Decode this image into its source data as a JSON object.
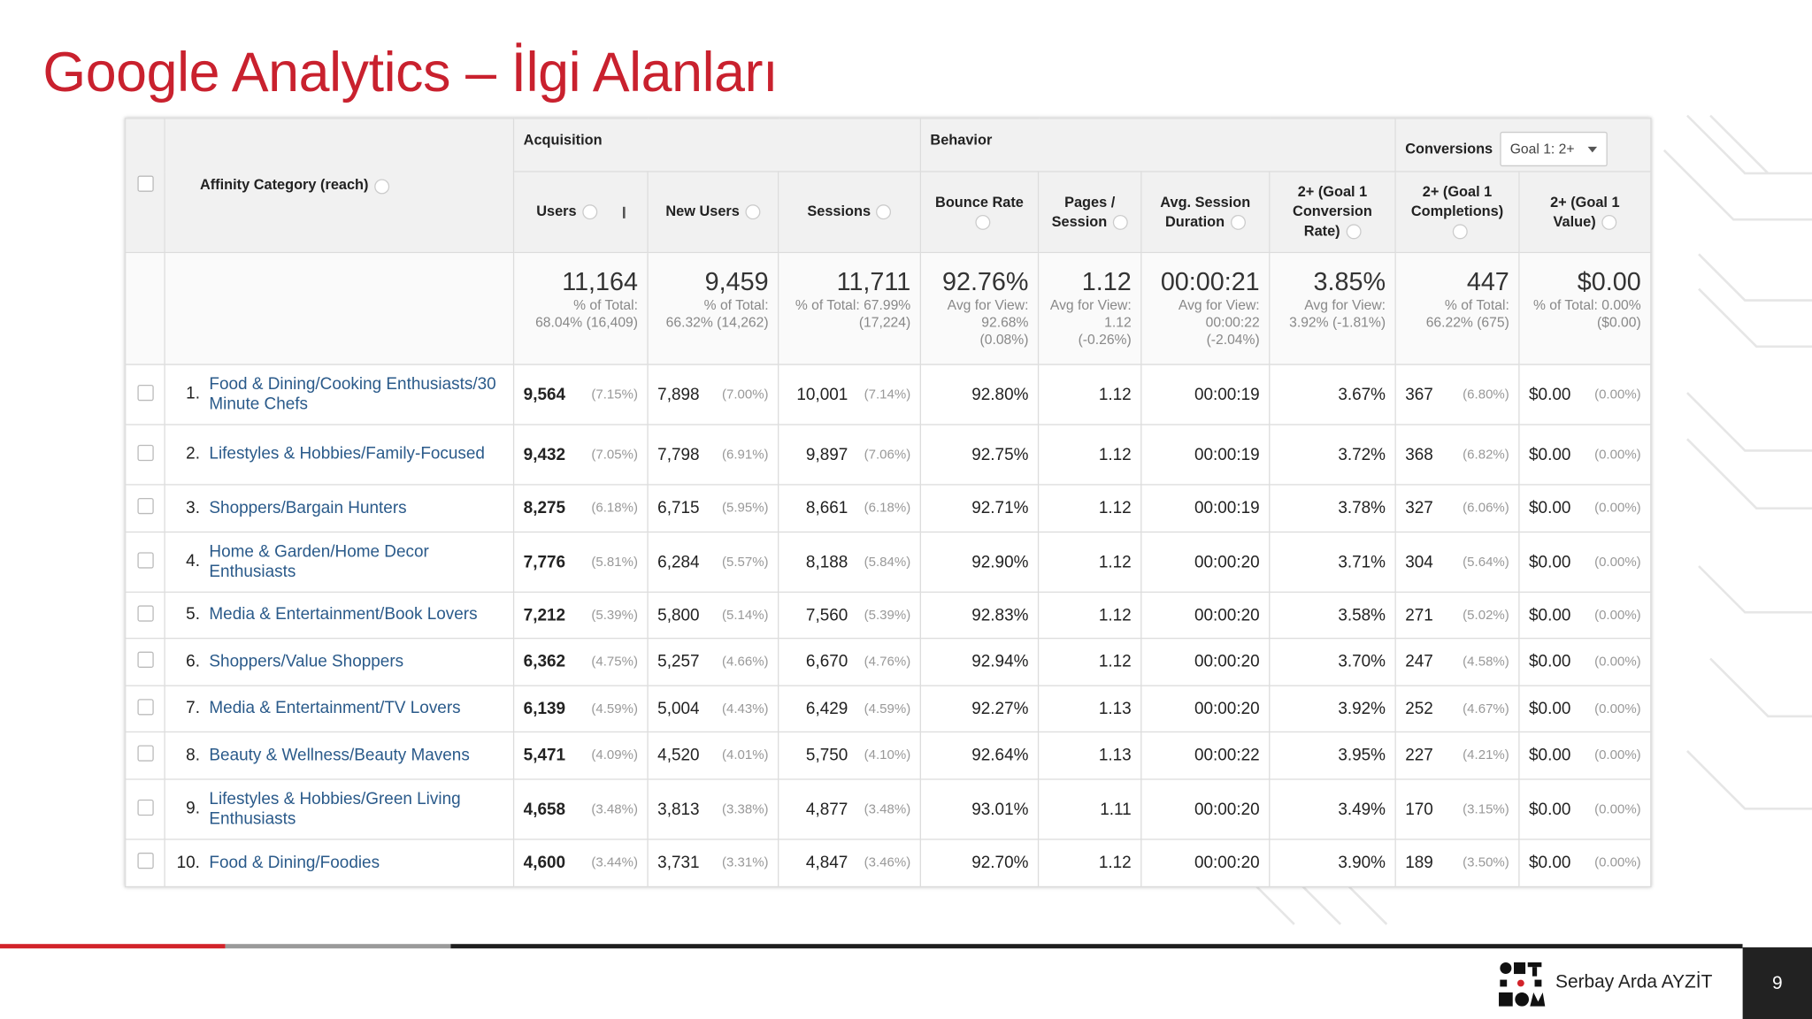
{
  "title": "Google Analytics – İlgi Alanları",
  "table": {
    "groups": [
      "Acquisition",
      "Behavior",
      "Conversions"
    ],
    "goal_select": "Goal 1: 2+",
    "columns": [
      "Affinity Category (reach)",
      "Users",
      "New Users",
      "Sessions",
      "Bounce Rate",
      "Pages / Session",
      "Avg. Session Duration",
      "2+ (Goal 1 Conversion Rate)",
      "2+ (Goal 1 Completions)",
      "2+ (Goal 1 Value)"
    ],
    "totals": [
      {
        "value": "11,164",
        "note": "% of Total: 68.04% (16,409)"
      },
      {
        "value": "9,459",
        "note": "% of Total: 66.32% (14,262)"
      },
      {
        "value": "11,711",
        "note": "% of Total: 67.99% (17,224)"
      },
      {
        "value": "92.76%",
        "note": "Avg for View: 92.68% (0.08%)"
      },
      {
        "value": "1.12",
        "note": "Avg for View: 1.12 (-0.26%)"
      },
      {
        "value": "00:00:21",
        "note": "Avg for View: 00:00:22 (-2.04%)"
      },
      {
        "value": "3.85%",
        "note": "Avg for View: 3.92% (-1.81%)"
      },
      {
        "value": "447",
        "note": "% of Total: 66.22% (675)"
      },
      {
        "value": "$0.00",
        "note": "% of Total: 0.00% ($0.00)"
      }
    ],
    "rows": [
      {
        "rank": "1.",
        "category": "Food & Dining/Cooking Enthusiasts/30 Minute Chefs",
        "cells": [
          [
            "9,564",
            "(7.15%)"
          ],
          [
            "7,898",
            "(7.00%)"
          ],
          [
            "10,001",
            "(7.14%)"
          ],
          "92.80%",
          "1.12",
          "00:00:19",
          "3.67%",
          [
            "367",
            "(6.80%)"
          ],
          [
            "$0.00",
            "(0.00%)"
          ]
        ]
      },
      {
        "rank": "2.",
        "category": "Lifestyles & Hobbies/Family-Focused",
        "cells": [
          [
            "9,432",
            "(7.05%)"
          ],
          [
            "7,798",
            "(6.91%)"
          ],
          [
            "9,897",
            "(7.06%)"
          ],
          "92.75%",
          "1.12",
          "00:00:19",
          "3.72%",
          [
            "368",
            "(6.82%)"
          ],
          [
            "$0.00",
            "(0.00%)"
          ]
        ]
      },
      {
        "rank": "3.",
        "category": "Shoppers/Bargain Hunters",
        "cells": [
          [
            "8,275",
            "(6.18%)"
          ],
          [
            "6,715",
            "(5.95%)"
          ],
          [
            "8,661",
            "(6.18%)"
          ],
          "92.71%",
          "1.12",
          "00:00:19",
          "3.78%",
          [
            "327",
            "(6.06%)"
          ],
          [
            "$0.00",
            "(0.00%)"
          ]
        ]
      },
      {
        "rank": "4.",
        "category": "Home & Garden/Home Decor Enthusiasts",
        "cells": [
          [
            "7,776",
            "(5.81%)"
          ],
          [
            "6,284",
            "(5.57%)"
          ],
          [
            "8,188",
            "(5.84%)"
          ],
          "92.90%",
          "1.12",
          "00:00:20",
          "3.71%",
          [
            "304",
            "(5.64%)"
          ],
          [
            "$0.00",
            "(0.00%)"
          ]
        ]
      },
      {
        "rank": "5.",
        "category": "Media & Entertainment/Book Lovers",
        "cells": [
          [
            "7,212",
            "(5.39%)"
          ],
          [
            "5,800",
            "(5.14%)"
          ],
          [
            "7,560",
            "(5.39%)"
          ],
          "92.83%",
          "1.12",
          "00:00:20",
          "3.58%",
          [
            "271",
            "(5.02%)"
          ],
          [
            "$0.00",
            "(0.00%)"
          ]
        ]
      },
      {
        "rank": "6.",
        "category": "Shoppers/Value Shoppers",
        "cells": [
          [
            "6,362",
            "(4.75%)"
          ],
          [
            "5,257",
            "(4.66%)"
          ],
          [
            "6,670",
            "(4.76%)"
          ],
          "92.94%",
          "1.12",
          "00:00:20",
          "3.70%",
          [
            "247",
            "(4.58%)"
          ],
          [
            "$0.00",
            "(0.00%)"
          ]
        ]
      },
      {
        "rank": "7.",
        "category": "Media & Entertainment/TV Lovers",
        "cells": [
          [
            "6,139",
            "(4.59%)"
          ],
          [
            "5,004",
            "(4.43%)"
          ],
          [
            "6,429",
            "(4.59%)"
          ],
          "92.27%",
          "1.13",
          "00:00:20",
          "3.92%",
          [
            "252",
            "(4.67%)"
          ],
          [
            "$0.00",
            "(0.00%)"
          ]
        ]
      },
      {
        "rank": "8.",
        "category": "Beauty & Wellness/Beauty Mavens",
        "cells": [
          [
            "5,471",
            "(4.09%)"
          ],
          [
            "4,520",
            "(4.01%)"
          ],
          [
            "5,750",
            "(4.10%)"
          ],
          "92.64%",
          "1.13",
          "00:00:22",
          "3.95%",
          [
            "227",
            "(4.21%)"
          ],
          [
            "$0.00",
            "(0.00%)"
          ]
        ]
      },
      {
        "rank": "9.",
        "category": "Lifestyles & Hobbies/Green Living Enthusiasts",
        "cells": [
          [
            "4,658",
            "(3.48%)"
          ],
          [
            "3,813",
            "(3.38%)"
          ],
          [
            "4,877",
            "(3.48%)"
          ],
          "93.01%",
          "1.11",
          "00:00:20",
          "3.49%",
          [
            "170",
            "(3.15%)"
          ],
          [
            "$0.00",
            "(0.00%)"
          ]
        ]
      },
      {
        "rank": "10.",
        "category": "Food & Dining/Foodies",
        "cells": [
          [
            "4,600",
            "(3.44%)"
          ],
          [
            "3,731",
            "(3.31%)"
          ],
          [
            "4,847",
            "(3.46%)"
          ],
          "92.70%",
          "1.12",
          "00:00:20",
          "3.90%",
          [
            "189",
            "(3.50%)"
          ],
          [
            "$0.00",
            "(0.00%)"
          ]
        ]
      }
    ]
  },
  "footer": {
    "author": "Serbay Arda AYZİT",
    "page": "9"
  }
}
